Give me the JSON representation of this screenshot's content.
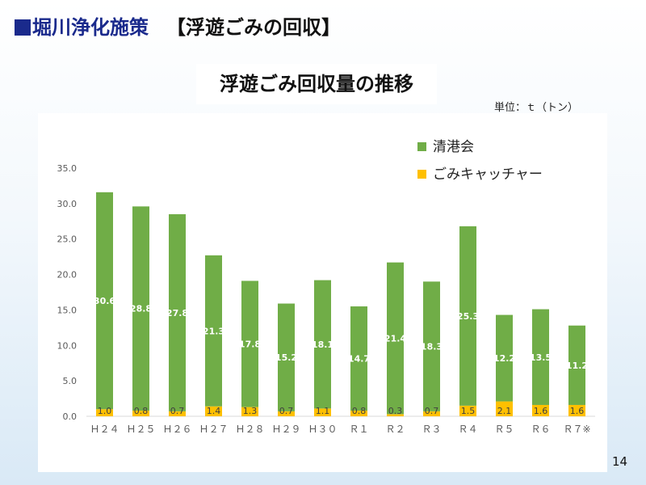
{
  "slide": {
    "title_left": "堀川浄化施策",
    "title_right": "【浮遊ごみの回収】",
    "subtitle": "浮遊ごみ回収量の推移",
    "unit_note": "単位：ｔ（トン）",
    "page_number": "14"
  },
  "chart_data": {
    "type": "bar",
    "stacked": true,
    "title": "浮遊ごみ回収量の推移",
    "xlabel": "",
    "ylabel": "",
    "ylim": [
      0,
      35
    ],
    "yticks": [
      "0.0",
      "5.0",
      "10.0",
      "15.0",
      "20.0",
      "25.0",
      "30.0",
      "35.0"
    ],
    "grid": false,
    "legend_position": "top-right",
    "categories": [
      "Ｈ２４",
      "Ｈ２５",
      "Ｈ２６",
      "Ｈ２７",
      "Ｈ２８",
      "Ｈ２９",
      "Ｈ３０",
      "Ｒ１",
      "Ｒ２",
      "Ｒ３",
      "Ｒ４",
      "Ｒ５",
      "Ｒ６",
      "Ｒ７※"
    ],
    "series": [
      {
        "name": "ごみキャッチャー",
        "color": "#ffc000",
        "values": [
          1.0,
          0.8,
          0.7,
          1.4,
          1.3,
          0.7,
          1.1,
          0.8,
          0.3,
          0.7,
          1.5,
          2.1,
          1.6,
          1.6
        ],
        "labels": [
          "1.0",
          "0.8",
          "0.7",
          "1.4",
          "1.3",
          "0.7",
          "1.1",
          "0.8",
          "0.3",
          "0.7",
          "1.5",
          "2.1",
          "1.6",
          "1.6"
        ]
      },
      {
        "name": "清港会",
        "color": "#70ad47",
        "values": [
          30.6,
          28.8,
          27.8,
          21.3,
          17.8,
          15.2,
          18.1,
          14.7,
          21.4,
          18.3,
          25.3,
          12.2,
          13.5,
          11.2
        ],
        "labels": [
          "30.6",
          "28.8",
          "27.8",
          "21.3",
          "17.8",
          "15.2",
          "18.1",
          "14.7",
          "21.4",
          "18.3",
          "25.3",
          "12.2",
          "13.5",
          "11.2"
        ]
      }
    ]
  }
}
